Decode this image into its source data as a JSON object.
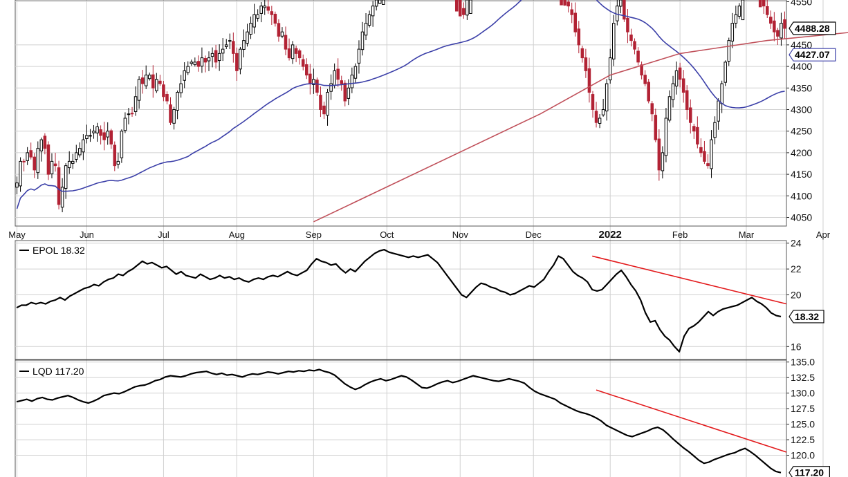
{
  "colors": {
    "bull": "#000000",
    "bear": "#b22234",
    "ma50": "#3b3fa8",
    "ma200": "#c0505a",
    "trend": "#e31a1c",
    "grid": "#d0d0d0",
    "axis": "#222222"
  },
  "chart_data": [
    {
      "type": "candlestick",
      "panel": "price",
      "months": [
        "May",
        "Jun",
        "Jul",
        "Aug",
        "Sep",
        "Oct",
        "Nov",
        "Dec",
        "2022",
        "Feb",
        "Mar",
        "Apr"
      ],
      "month_day_index": [
        0,
        20,
        42,
        63,
        85,
        106,
        127,
        148,
        170,
        190,
        209,
        231
      ],
      "yticks": [
        4050,
        4100,
        4150,
        4200,
        4250,
        4300,
        4350,
        4400,
        4450,
        4550
      ],
      "ylim": [
        4030,
        4570
      ],
      "close_series": [
        4130,
        4180,
        4180,
        4200,
        4190,
        4160,
        4210,
        4230,
        4210,
        4150,
        4180,
        4170,
        4080,
        4120,
        4170,
        4180,
        4180,
        4200,
        4210,
        4230,
        4240,
        4240,
        4250,
        4260,
        4240,
        4230,
        4250,
        4220,
        4170,
        4180,
        4250,
        4280,
        4290,
        4290,
        4330,
        4370,
        4360,
        4380,
        4380,
        4350,
        4370,
        4360,
        4330,
        4320,
        4270,
        4300,
        4340,
        4360,
        4390,
        4400,
        4410,
        4410,
        4400,
        4420,
        4410,
        4420,
        4430,
        4410,
        4430,
        4440,
        4450,
        4460,
        4430,
        4390,
        4440,
        4460,
        4480,
        4500,
        4520,
        4520,
        4540,
        4540,
        4530,
        4520,
        4500,
        4470,
        4480,
        4440,
        4420,
        4450,
        4430,
        4420,
        4400,
        4380,
        4360,
        4370,
        4340,
        4300,
        4290,
        4340,
        4360,
        4390,
        4370,
        4360,
        4320,
        4350,
        4380,
        4400,
        4440,
        4480,
        4500,
        4520,
        4540,
        4560,
        4560,
        4570,
        4590,
        4590,
        4600,
        4620,
        4640,
        4660,
        4680,
        4690,
        4700,
        4700,
        4690,
        4680,
        4660,
        4660,
        4690,
        4700,
        4690,
        4650,
        4600,
        4580,
        4560,
        4530,
        4520,
        4560,
        4590,
        4620,
        4650,
        4660,
        4660,
        4650,
        4640,
        4650,
        4670,
        4690,
        4700,
        4700,
        4680,
        4690,
        4710,
        4720,
        4740,
        4760,
        4780,
        4790,
        4770,
        4750,
        4710,
        4670,
        4600,
        4580,
        4560,
        4550,
        4540,
        4520,
        4480,
        4450,
        4420,
        4390,
        4340,
        4300,
        4270,
        4280,
        4300,
        4360,
        4420,
        4500,
        4540,
        4560,
        4520,
        4480,
        4460,
        4440,
        4410,
        4380,
        4360,
        4320,
        4290,
        4230,
        4160,
        4200,
        4280,
        4330,
        4360,
        4390,
        4370,
        4340,
        4300,
        4270,
        4250,
        4220,
        4200,
        4180,
        4170,
        4230,
        4270,
        4320,
        4360,
        4410,
        4460,
        4500,
        4520,
        4540,
        4580,
        4600,
        4610,
        4590,
        4570,
        4560,
        4540,
        4520,
        4500,
        4480,
        4470,
        4500,
        4488.28
      ],
      "ma50_label": 4427.07,
      "ma200_at": [
        [
          85,
          4040
        ],
        [
          150,
          4290
        ],
        [
          170,
          4380
        ],
        [
          190,
          4430
        ],
        [
          215,
          4460
        ],
        [
          240,
          4480
        ]
      ],
      "last_label": "4488.28",
      "ma_label": "4427.07"
    },
    {
      "type": "line",
      "panel": "epol",
      "name": "EPOL",
      "legend": "EPOL 18.32",
      "yticks": [
        16,
        20,
        22,
        24
      ],
      "ylim": [
        15,
        24.2
      ],
      "values": [
        19.0,
        19.2,
        19.2,
        19.4,
        19.3,
        19.4,
        19.3,
        19.5,
        19.6,
        19.8,
        19.6,
        19.9,
        20.1,
        20.3,
        20.5,
        20.6,
        20.8,
        20.7,
        21.0,
        21.2,
        21.3,
        21.6,
        21.5,
        21.8,
        22.0,
        22.3,
        22.6,
        22.4,
        22.5,
        22.3,
        22.1,
        22.2,
        21.9,
        21.6,
        21.8,
        21.5,
        21.4,
        21.3,
        21.6,
        21.4,
        21.2,
        21.3,
        21.5,
        21.3,
        21.4,
        21.2,
        21.3,
        21.1,
        21.0,
        21.2,
        21.3,
        21.2,
        21.4,
        21.5,
        21.4,
        21.6,
        21.8,
        21.6,
        21.5,
        21.7,
        21.9,
        22.4,
        22.8,
        22.6,
        22.5,
        22.3,
        22.4,
        22.0,
        21.7,
        22.0,
        21.8,
        22.2,
        22.6,
        22.9,
        23.2,
        23.4,
        23.5,
        23.3,
        23.2,
        23.1,
        23.0,
        22.9,
        23.0,
        22.9,
        23.0,
        23.1,
        22.8,
        22.5,
        22.0,
        21.5,
        21.0,
        20.5,
        20.0,
        19.8,
        20.2,
        20.6,
        20.9,
        20.8,
        20.6,
        20.5,
        20.3,
        20.2,
        20.0,
        20.1,
        20.3,
        20.5,
        20.7,
        20.6,
        20.9,
        21.2,
        21.8,
        22.3,
        23.0,
        22.8,
        22.3,
        21.8,
        21.5,
        21.3,
        21.0,
        20.4,
        20.3,
        20.4,
        20.8,
        21.2,
        21.6,
        21.9,
        21.4,
        20.8,
        20.3,
        19.6,
        18.6,
        17.9,
        18.0,
        17.3,
        16.8,
        16.5,
        16.0,
        15.6,
        16.8,
        17.4,
        17.6,
        17.9,
        18.3,
        18.7,
        18.4,
        18.7,
        18.9,
        19.0,
        19.1,
        19.2,
        19.4,
        19.6,
        19.8,
        19.5,
        19.3,
        19.0,
        18.6,
        18.4,
        18.32
      ],
      "last_label": "18.32",
      "trendline": [
        [
          23.0,
          0.0
        ],
        [
          19.3,
          1.0
        ]
      ]
    },
    {
      "type": "line",
      "panel": "lqd",
      "name": "LQD",
      "legend": "LQD 117.20",
      "yticks": [
        120.0,
        122.5,
        125.0,
        127.5,
        130.0,
        132.5,
        135.0
      ],
      "ylim": [
        116.5,
        135.3
      ],
      "values": [
        128.6,
        128.8,
        129.0,
        128.7,
        129.1,
        129.3,
        129.0,
        128.9,
        129.2,
        129.4,
        129.6,
        129.3,
        128.9,
        128.6,
        128.4,
        128.7,
        129.1,
        129.6,
        129.8,
        130.0,
        129.9,
        130.2,
        130.6,
        131.0,
        131.2,
        131.3,
        131.6,
        132.0,
        132.2,
        132.6,
        132.8,
        132.7,
        132.6,
        132.8,
        133.1,
        133.3,
        133.4,
        133.5,
        133.2,
        133.0,
        133.2,
        132.9,
        133.0,
        132.8,
        132.6,
        132.9,
        133.1,
        133.0,
        133.2,
        133.4,
        133.3,
        133.1,
        133.3,
        133.5,
        133.4,
        133.6,
        133.5,
        133.7,
        133.6,
        133.8,
        133.5,
        133.3,
        132.9,
        132.2,
        131.5,
        131.0,
        130.6,
        130.9,
        131.4,
        131.8,
        132.1,
        132.3,
        132.0,
        132.2,
        132.5,
        132.8,
        132.6,
        132.1,
        131.5,
        130.9,
        130.8,
        131.1,
        131.5,
        131.8,
        132.0,
        131.7,
        131.9,
        132.2,
        132.5,
        132.8,
        132.6,
        132.4,
        132.2,
        132.0,
        131.9,
        132.1,
        132.3,
        132.1,
        131.9,
        131.6,
        130.9,
        130.3,
        129.9,
        129.6,
        129.3,
        129.0,
        128.4,
        128.0,
        127.6,
        127.2,
        126.9,
        126.7,
        126.4,
        126.0,
        125.5,
        124.8,
        124.4,
        124.0,
        123.6,
        123.2,
        123.0,
        123.3,
        123.6,
        123.9,
        124.3,
        124.5,
        124.1,
        123.4,
        122.6,
        121.9,
        121.2,
        120.6,
        119.9,
        119.2,
        118.7,
        118.9,
        119.3,
        119.6,
        119.9,
        120.2,
        120.4,
        120.8,
        121.1,
        120.6,
        120.0,
        119.3,
        118.6,
        117.9,
        117.4,
        117.2
      ],
      "last_label": "117.20",
      "trendline": [
        [
          130.5,
          0.0
        ],
        [
          120.5,
          1.0
        ]
      ]
    }
  ],
  "panels": {
    "epol": {
      "legend_name": "EPOL",
      "legend_value": "18.32"
    },
    "lqd": {
      "legend_name": "LQD",
      "legend_value": "117.20"
    }
  }
}
